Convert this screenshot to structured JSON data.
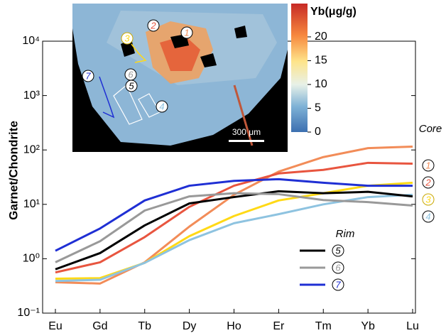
{
  "chart_data": {
    "type": "line",
    "log_y": true,
    "ylabel": "Garnet/Chondrite",
    "categories": [
      "Eu",
      "Gd",
      "Tb",
      "Dy",
      "Ho",
      "Er",
      "Tm",
      "Yb",
      "Lu"
    ],
    "ylim": [
      0.1,
      10000
    ],
    "yticks": [
      {
        "value": 0.1,
        "label": "10⁻¹"
      },
      {
        "value": 1,
        "label": "10⁰"
      },
      {
        "value": 10,
        "label": "10¹"
      },
      {
        "value": 100,
        "label": "10²"
      },
      {
        "value": 1000,
        "label": "10³"
      },
      {
        "value": 10000,
        "label": "10⁴"
      }
    ],
    "series": [
      {
        "name": "1",
        "group": "Core",
        "color": "#f28c58",
        "values": [
          0.37,
          0.35,
          0.86,
          3.9,
          15,
          40,
          74,
          108,
          115
        ]
      },
      {
        "name": "2",
        "group": "Core",
        "color": "#e8553f",
        "values": [
          0.56,
          0.86,
          2.5,
          9,
          22,
          37,
          43,
          58,
          56
        ]
      },
      {
        "name": "3",
        "group": "Core",
        "color": "#ffd916",
        "values": [
          0.43,
          0.44,
          0.84,
          2.6,
          6.1,
          11.8,
          16,
          22,
          25
        ]
      },
      {
        "name": "4",
        "group": "Core",
        "color": "#8ec3e0",
        "values": [
          0.39,
          0.41,
          0.84,
          2.2,
          4.5,
          6.6,
          10,
          13.6,
          15
        ]
      },
      {
        "name": "5",
        "group": "Rim",
        "color": "#000000",
        "values": [
          0.64,
          1.27,
          4.1,
          10.4,
          13.6,
          17.4,
          16,
          17,
          14
        ]
      },
      {
        "name": "6",
        "group": "Rim",
        "color": "#999999",
        "values": [
          0.86,
          2.1,
          7.7,
          14,
          16,
          15.4,
          12,
          11,
          9.5
        ]
      },
      {
        "name": "7",
        "group": "Rim",
        "color": "#1f2fd4",
        "values": [
          1.4,
          3.6,
          11.8,
          22,
          27,
          29,
          25,
          22,
          22
        ]
      }
    ],
    "inset": {
      "colorbar_label": "Yb(μg/g)",
      "colorbar_lim": [
        0,
        27
      ],
      "colorbar_ticks": [
        0,
        5,
        10,
        15,
        20
      ],
      "scale_bar": "300 μm"
    }
  }
}
